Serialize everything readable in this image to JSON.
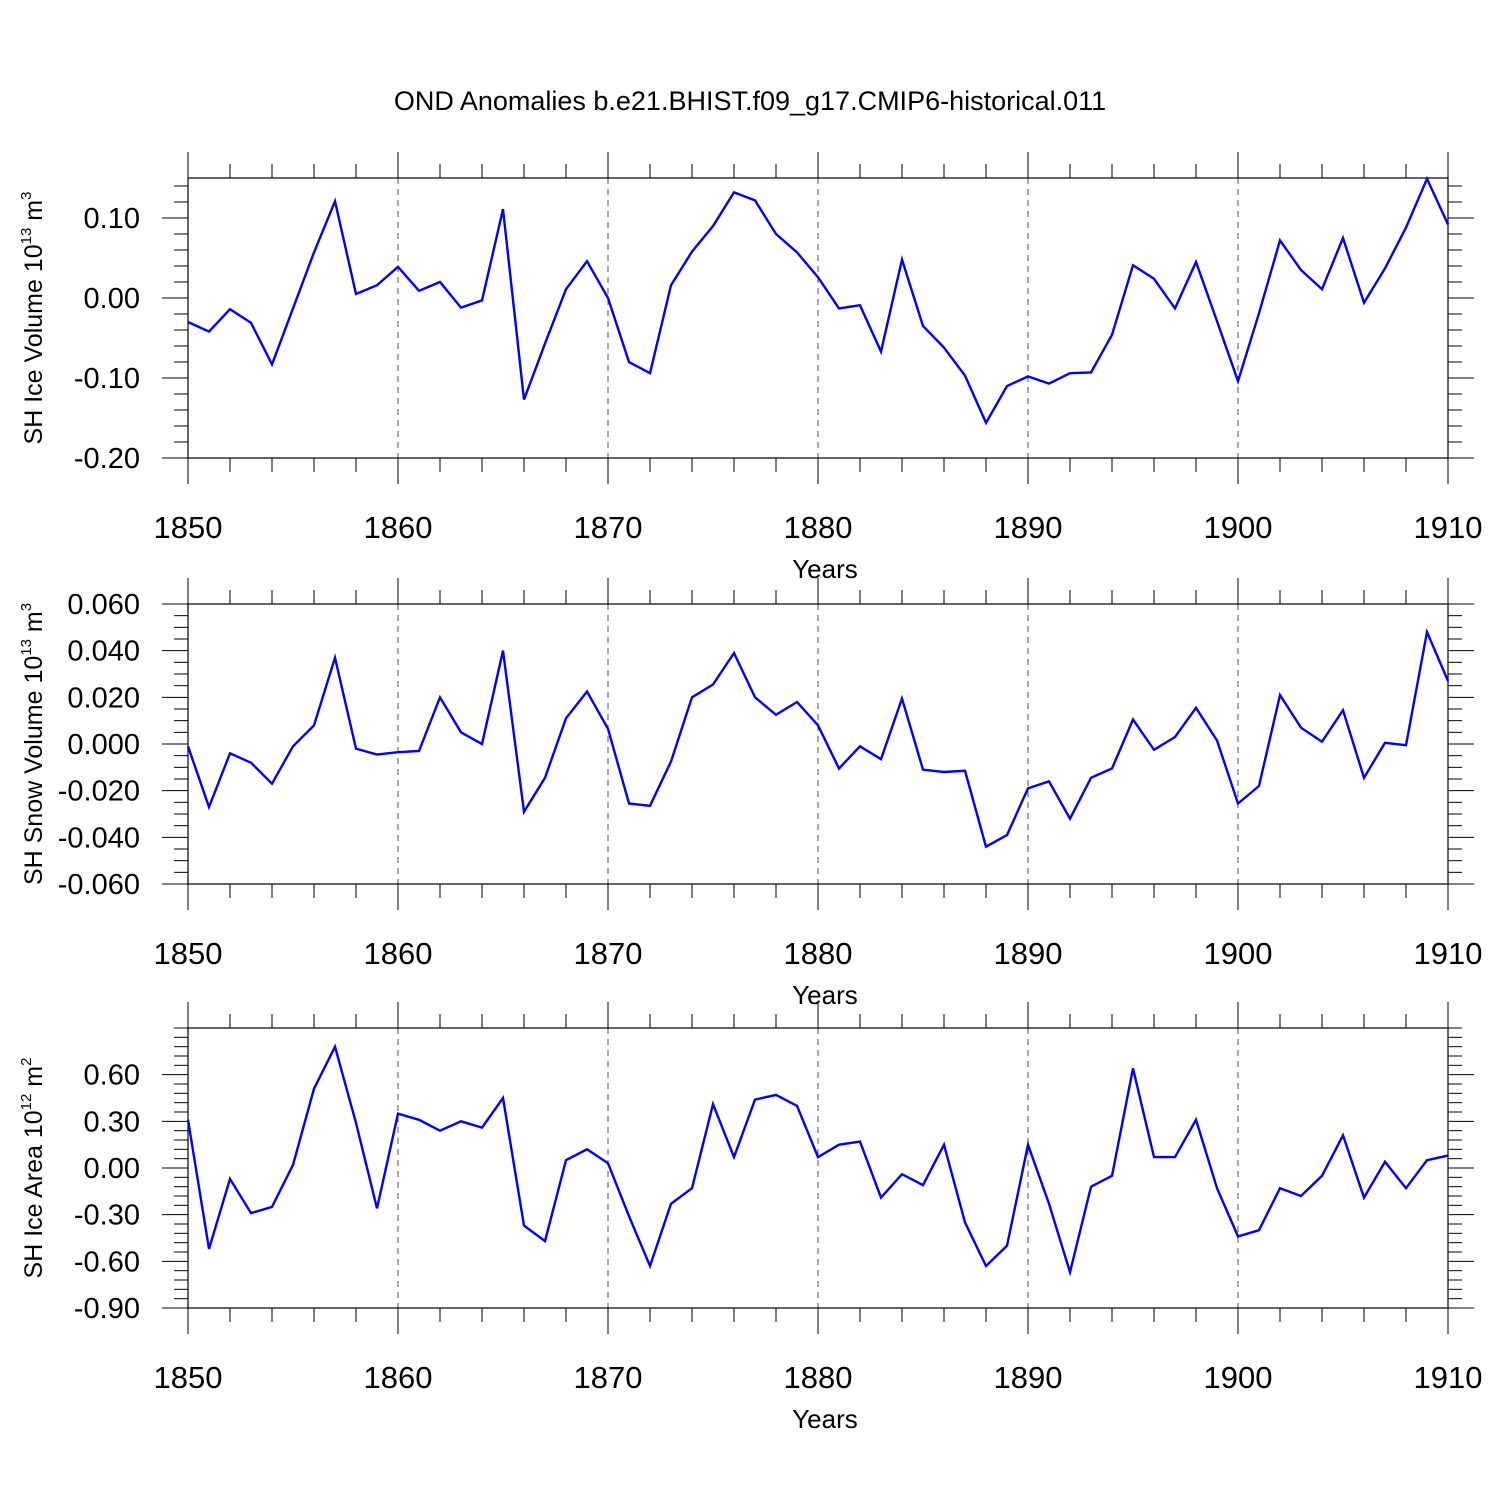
{
  "title": "OND Anomalies b.e21.BHIST.f09_g17.CMIP6-historical.011",
  "line_color": "#0000ff",
  "chart_data": [
    {
      "type": "line",
      "xlabel": "Years",
      "ylabel_parts": [
        "SH Ice Volume 10",
        "13",
        " m",
        "3"
      ],
      "xlim": [
        1850,
        1910
      ],
      "ylim": [
        -0.2,
        0.15
      ],
      "x_ticks": [
        1850,
        1860,
        1870,
        1880,
        1890,
        1900,
        1910
      ],
      "x_tick_labels": [
        "1850",
        "1860",
        "1870",
        "1880",
        "1890",
        "1900",
        "1910"
      ],
      "y_ticks": [
        -0.2,
        -0.1,
        0.0,
        0.1
      ],
      "y_tick_labels": [
        "-0.20",
        "-0.10",
        "0.00",
        "0.10"
      ],
      "y_minor_step": 0.02,
      "grid": "dashed vertical at major x ticks",
      "series": [
        {
          "name": "SH Ice Volume",
          "x": [
            1850,
            1851,
            1852,
            1853,
            1854,
            1855,
            1856,
            1857,
            1858,
            1859,
            1860,
            1861,
            1862,
            1863,
            1864,
            1865,
            1866,
            1867,
            1868,
            1869,
            1870,
            1871,
            1872,
            1873,
            1874,
            1875,
            1876,
            1877,
            1878,
            1879,
            1880,
            1881,
            1882,
            1883,
            1884,
            1885,
            1886,
            1887,
            1888,
            1889,
            1890,
            1891,
            1892,
            1893,
            1894,
            1895,
            1896,
            1897,
            1898,
            1899,
            1900,
            1901,
            1902,
            1903,
            1904,
            1905,
            1906,
            1907,
            1908,
            1909,
            1910
          ],
          "values": [
            -0.03,
            -0.042,
            -0.014,
            -0.031,
            -0.083,
            -0.013,
            0.057,
            0.121,
            0.005,
            0.016,
            0.039,
            0.009,
            0.02,
            -0.012,
            -0.003,
            0.111,
            -0.127,
            -0.057,
            0.011,
            0.046,
            0.0,
            -0.08,
            -0.094,
            0.016,
            0.058,
            0.09,
            0.132,
            0.122,
            0.08,
            0.057,
            0.026,
            -0.013,
            -0.009,
            -0.067,
            0.048,
            -0.035,
            -0.062,
            -0.097,
            -0.156,
            -0.11,
            -0.098,
            -0.107,
            -0.094,
            -0.093,
            -0.046,
            0.041,
            0.024,
            -0.013,
            0.045,
            -0.029,
            -0.104,
            -0.019,
            0.072,
            0.035,
            0.011,
            0.075,
            -0.006,
            0.037,
            0.088,
            0.149,
            0.092
          ]
        }
      ]
    },
    {
      "type": "line",
      "xlabel": "Years",
      "ylabel_parts": [
        "SH Snow Volume 10",
        "13",
        " m",
        "3"
      ],
      "xlim": [
        1850,
        1910
      ],
      "ylim": [
        -0.06,
        0.06
      ],
      "x_ticks": [
        1850,
        1860,
        1870,
        1880,
        1890,
        1900,
        1910
      ],
      "x_tick_labels": [
        "1850",
        "1860",
        "1870",
        "1880",
        "1890",
        "1900",
        "1910"
      ],
      "y_ticks": [
        -0.06,
        -0.04,
        -0.02,
        0.0,
        0.02,
        0.04,
        0.06
      ],
      "y_tick_labels": [
        "-0.060",
        "-0.040",
        "-0.020",
        "0.000",
        "0.020",
        "0.040",
        "0.060"
      ],
      "y_minor_step": 0.005,
      "grid": "dashed vertical at major x ticks",
      "series": [
        {
          "name": "SH Snow Volume",
          "x": [
            1850,
            1851,
            1852,
            1853,
            1854,
            1855,
            1856,
            1857,
            1858,
            1859,
            1860,
            1861,
            1862,
            1863,
            1864,
            1865,
            1866,
            1867,
            1868,
            1869,
            1870,
            1871,
            1872,
            1873,
            1874,
            1875,
            1876,
            1877,
            1878,
            1879,
            1880,
            1881,
            1882,
            1883,
            1884,
            1885,
            1886,
            1887,
            1888,
            1889,
            1890,
            1891,
            1892,
            1893,
            1894,
            1895,
            1896,
            1897,
            1898,
            1899,
            1900,
            1901,
            1902,
            1903,
            1904,
            1905,
            1906,
            1907,
            1908,
            1909,
            1910
          ],
          "values": [
            -0.001,
            -0.027,
            -0.004,
            -0.008,
            -0.017,
            -0.001,
            0.008,
            0.037,
            -0.002,
            -0.0045,
            -0.0035,
            -0.003,
            0.02,
            0.005,
            0.0,
            0.04,
            -0.029,
            -0.0145,
            0.011,
            0.0225,
            0.0065,
            -0.0255,
            -0.0265,
            -0.0075,
            0.02,
            0.0255,
            0.039,
            0.02,
            0.0125,
            0.018,
            0.008,
            -0.0105,
            -0.001,
            -0.0065,
            0.0195,
            -0.011,
            -0.012,
            -0.0115,
            -0.044,
            -0.039,
            -0.019,
            -0.016,
            -0.032,
            -0.0145,
            -0.0105,
            0.0105,
            -0.0025,
            0.003,
            0.0155,
            0.0015,
            -0.0255,
            -0.018,
            0.021,
            0.007,
            0.001,
            0.0145,
            -0.0145,
            0.0005,
            -0.0005,
            0.048,
            0.027
          ]
        }
      ]
    },
    {
      "type": "line",
      "xlabel": "Years",
      "ylabel_parts": [
        "SH Ice Area 10",
        "12",
        " m",
        "2"
      ],
      "xlim": [
        1850,
        1910
      ],
      "ylim": [
        -0.9,
        0.9
      ],
      "x_ticks": [
        1850,
        1860,
        1870,
        1880,
        1890,
        1900,
        1910
      ],
      "x_tick_labels": [
        "1850",
        "1860",
        "1870",
        "1880",
        "1890",
        "1900",
        "1910"
      ],
      "y_ticks": [
        -0.9,
        -0.6,
        -0.3,
        0.0,
        0.3,
        0.6
      ],
      "y_tick_labels": [
        "-0.90",
        "-0.60",
        "-0.30",
        "0.00",
        "0.30",
        "0.60"
      ],
      "y_minor_step": 0.06,
      "grid": "dashed vertical at major x ticks",
      "series": [
        {
          "name": "SH Ice Area",
          "x": [
            1850,
            1851,
            1852,
            1853,
            1854,
            1855,
            1856,
            1857,
            1858,
            1859,
            1860,
            1861,
            1862,
            1863,
            1864,
            1865,
            1866,
            1867,
            1868,
            1869,
            1870,
            1871,
            1872,
            1873,
            1874,
            1875,
            1876,
            1877,
            1878,
            1879,
            1880,
            1881,
            1882,
            1883,
            1884,
            1885,
            1886,
            1887,
            1888,
            1889,
            1890,
            1891,
            1892,
            1893,
            1894,
            1895,
            1896,
            1897,
            1898,
            1899,
            1900,
            1901,
            1902,
            1903,
            1904,
            1905,
            1906,
            1907,
            1908,
            1909,
            1910
          ],
          "values": [
            0.31,
            -0.52,
            -0.07,
            -0.29,
            -0.25,
            0.02,
            0.51,
            0.78,
            0.29,
            -0.26,
            0.35,
            0.31,
            0.24,
            0.3,
            0.26,
            0.45,
            -0.37,
            -0.47,
            0.05,
            0.12,
            0.03,
            -0.31,
            -0.63,
            -0.23,
            -0.13,
            0.41,
            0.07,
            0.44,
            0.47,
            0.4,
            0.07,
            0.15,
            0.17,
            -0.19,
            -0.04,
            -0.11,
            0.15,
            -0.35,
            -0.63,
            -0.5,
            0.15,
            -0.23,
            -0.67,
            -0.12,
            -0.05,
            0.64,
            0.07,
            0.07,
            0.31,
            -0.13,
            -0.44,
            -0.4,
            -0.13,
            -0.18,
            -0.05,
            0.21,
            -0.19,
            0.04,
            -0.13,
            0.05,
            0.08
          ]
        }
      ]
    }
  ]
}
